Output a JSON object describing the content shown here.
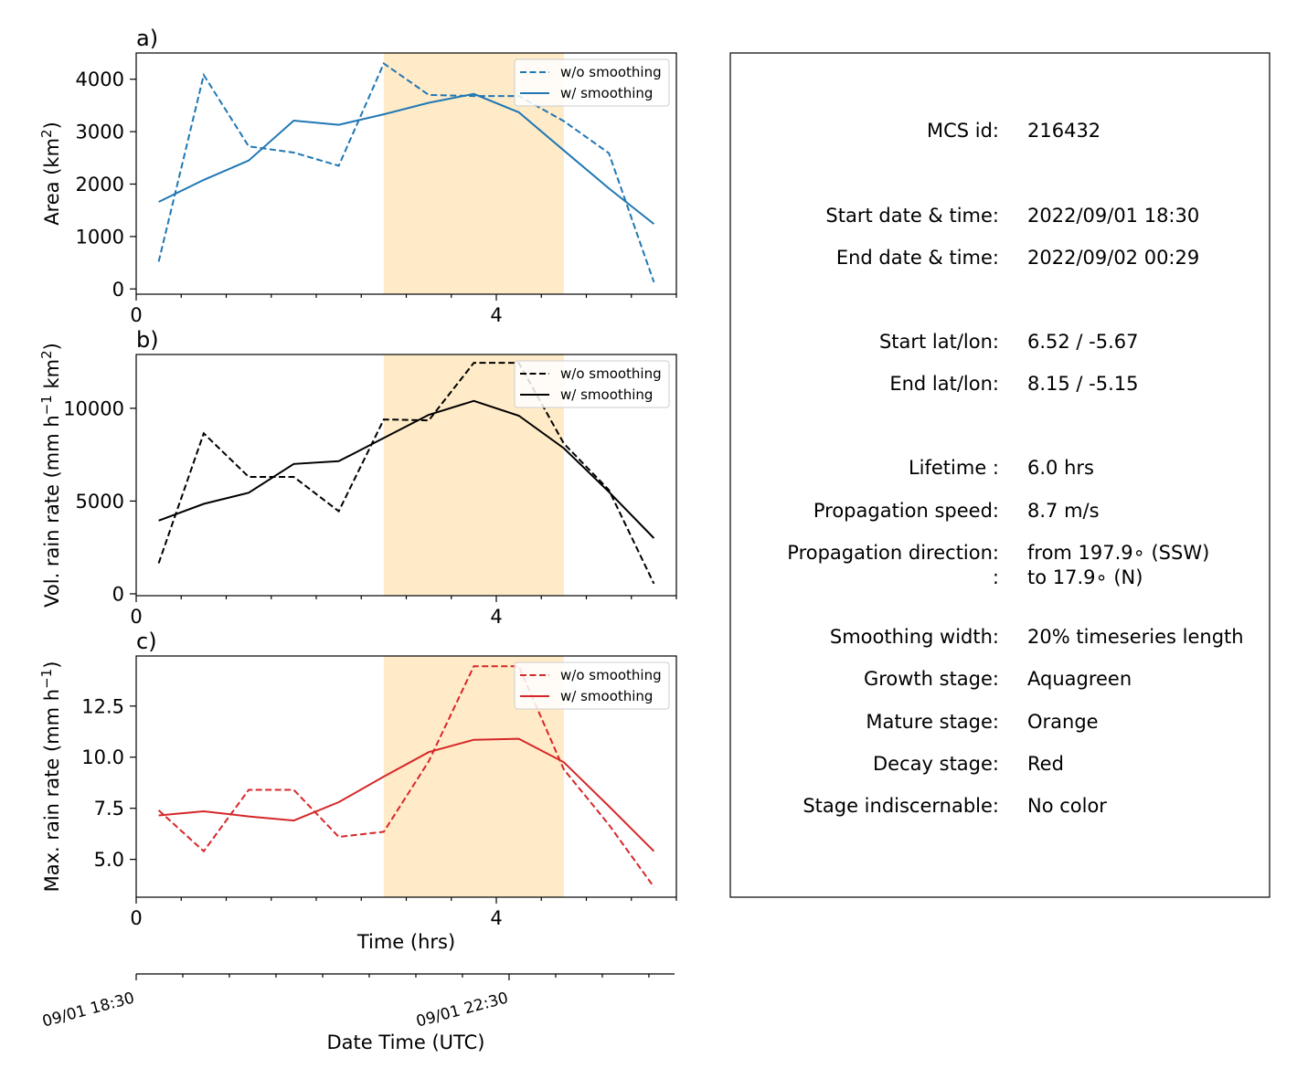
{
  "chart_data": [
    {
      "type": "line",
      "panel": "a)",
      "ylabel_main": "Area  (km",
      "ylabel_sup": "2",
      "ylabel_end": ")",
      "ylim": [
        -100,
        4500
      ],
      "xlim": [
        0,
        6
      ],
      "yticks": [
        0,
        1000,
        2000,
        3000,
        4000
      ],
      "xticks": [
        0,
        4
      ],
      "legend": "top-right",
      "shaded_interval": [
        2.75,
        4.75
      ],
      "series": [
        {
          "name": "w/o smoothing",
          "style": "dashed",
          "color": "#1f77b4",
          "x": [
            0.25,
            0.75,
            1.25,
            1.75,
            2.25,
            2.75,
            3.25,
            3.75,
            4.25,
            4.75,
            5.25,
            5.75
          ],
          "y": [
            520,
            4080,
            2720,
            2600,
            2350,
            4300,
            3700,
            3680,
            3680,
            3200,
            2590,
            130
          ]
        },
        {
          "name": "w/ smoothing",
          "style": "solid",
          "color": "#1f77b4",
          "x": [
            0.25,
            0.75,
            1.25,
            1.75,
            2.25,
            2.75,
            3.25,
            3.75,
            4.25,
            4.75,
            5.25,
            5.75
          ],
          "y": [
            1660,
            2080,
            2450,
            3210,
            3130,
            3330,
            3550,
            3720,
            3370,
            2640,
            1920,
            1240
          ]
        }
      ]
    },
    {
      "type": "line",
      "panel": "b)",
      "ylabel_main": "Vol. rain rate (mm h",
      "ylabel_sup": "−1",
      "ylabel_mid": " km",
      "ylabel_sup2": "2",
      "ylabel_end": ")",
      "ylim": [
        -100,
        12900
      ],
      "xlim": [
        0,
        6
      ],
      "yticks": [
        0,
        5000,
        10000
      ],
      "xticks": [
        0,
        4
      ],
      "legend": "top-right",
      "shaded_interval": [
        2.75,
        4.75
      ],
      "series": [
        {
          "name": "w/o smoothing",
          "style": "dashed",
          "color": "#000000",
          "x": [
            0.25,
            0.75,
            1.25,
            1.75,
            2.25,
            2.75,
            3.25,
            3.75,
            4.25,
            4.75,
            5.25,
            5.75
          ],
          "y": [
            1650,
            8650,
            6300,
            6300,
            4450,
            9400,
            9350,
            12450,
            12450,
            8100,
            5600,
            550
          ]
        },
        {
          "name": "w/ smoothing",
          "style": "solid",
          "color": "#000000",
          "x": [
            0.25,
            0.75,
            1.25,
            1.75,
            2.25,
            2.75,
            3.25,
            3.75,
            4.25,
            4.75,
            5.25,
            5.75
          ],
          "y": [
            3950,
            4850,
            5450,
            7000,
            7150,
            8400,
            9650,
            10400,
            9600,
            7850,
            5500,
            3000
          ]
        }
      ]
    },
    {
      "type": "line",
      "panel": "c)",
      "ylabel_main": "Max. rain rate  (mm h",
      "ylabel_sup": "−1",
      "ylabel_end": ")",
      "ylim": [
        3.15,
        14.95
      ],
      "xlim": [
        0,
        6
      ],
      "yticks": [
        "5.0",
        "7.5",
        "10.0",
        "12.5"
      ],
      "xticks": [
        0,
        4
      ],
      "xlabel": "Time (hrs)",
      "legend": "top-right",
      "shaded_interval": [
        2.75,
        4.75
      ],
      "series": [
        {
          "name": "w/o smoothing",
          "style": "dashed",
          "color": "#d62728",
          "x": [
            0.25,
            0.75,
            1.25,
            1.75,
            2.25,
            2.75,
            3.25,
            3.75,
            4.25,
            4.75,
            5.25,
            5.75
          ],
          "y": [
            7.4,
            5.4,
            8.4,
            8.4,
            6.1,
            6.35,
            9.8,
            14.45,
            14.45,
            9.4,
            6.7,
            3.65
          ]
        },
        {
          "name": "w/ smoothing",
          "style": "solid",
          "color": "#d62728",
          "x": [
            0.25,
            0.75,
            1.25,
            1.75,
            2.25,
            2.75,
            3.25,
            3.75,
            4.25,
            4.75,
            5.25,
            5.75
          ],
          "y": [
            7.15,
            7.35,
            7.1,
            6.9,
            7.8,
            9.05,
            10.25,
            10.85,
            10.9,
            9.75,
            7.6,
            5.4
          ]
        }
      ]
    }
  ],
  "date_axis": {
    "label": "Date Time (UTC)",
    "tick_labels": [
      "09/01 18:30",
      "09/01 22:30"
    ]
  },
  "shading_color": "#ffebc8",
  "info_panel": {
    "rows": [
      {
        "key": "MCS id:",
        "value": "216432"
      },
      {
        "key": "Start date & time:",
        "value": "2022/09/01 18:30"
      },
      {
        "key": "End date & time:",
        "value": "2022/09/02 00:29"
      },
      {
        "key": "Start lat/lon:",
        "value": "6.52 / -5.67"
      },
      {
        "key": "End lat/lon:",
        "value": "8.15 / -5.15"
      },
      {
        "key": "Lifetime :",
        "value": "6.0 hrs"
      },
      {
        "key": "Propagation speed:",
        "value": "8.7 m/s"
      },
      {
        "key": "Propagation direction:",
        "value": "from 197.9∘ (SSW)"
      },
      {
        "key": ":",
        "value": "to    17.9∘ (N)"
      },
      {
        "key": "Smoothing width:",
        "value": "20% timeseries length"
      },
      {
        "key": "Growth stage:",
        "value": "Aquagreen"
      },
      {
        "key": "Mature stage:",
        "value": "Orange"
      },
      {
        "key": "Decay stage:",
        "value": "Red"
      },
      {
        "key": "Stage indiscernable:",
        "value": "No color"
      }
    ]
  }
}
